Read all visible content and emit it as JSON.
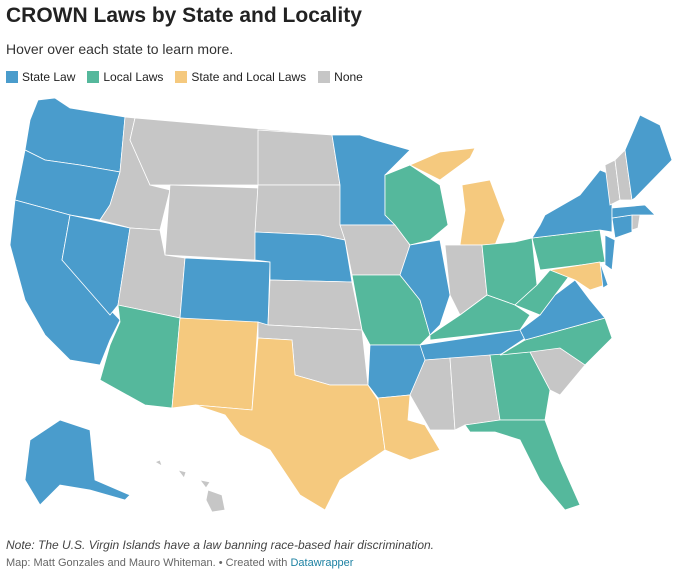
{
  "header": {
    "title": "CROWN Laws by State and Locality",
    "subtitle": "Hover over each state to learn more."
  },
  "legend": [
    {
      "label": "State Law",
      "color": "#4a9ccc"
    },
    {
      "label": "Local Laws",
      "color": "#55b89c"
    },
    {
      "label": "State and Local Laws",
      "color": "#f5c97e"
    },
    {
      "label": "None",
      "color": "#c6c6c6"
    }
  ],
  "states": {
    "WA": 0,
    "OR": 0,
    "CA": 0,
    "NV": 0,
    "ID": 3,
    "MT": 3,
    "WY": 3,
    "UT": 3,
    "CO": 0,
    "AZ": 1,
    "NM": 2,
    "ND": 3,
    "SD": 3,
    "NE": 0,
    "KS": 3,
    "OK": 3,
    "TX": 2,
    "MN": 0,
    "IA": 3,
    "MO": 1,
    "AR": 0,
    "LA": 2,
    "WI": 1,
    "IL": 0,
    "MI": 2,
    "MIU": 2,
    "IN": 3,
    "OH": 1,
    "KY": 1,
    "TN": 0,
    "MS": 3,
    "AL": 3,
    "GA": 1,
    "FL": 1,
    "SC": 3,
    "NC": 1,
    "VA": 0,
    "WV": 1,
    "PA": 1,
    "NY": 0,
    "MD": 2,
    "DE": 0,
    "NJ": 0,
    "CT": 0,
    "RI": 3,
    "MA": 0,
    "VT": 3,
    "NH": 3,
    "ME": 0,
    "AK": 0,
    "HI": 3
  },
  "footer": {
    "note": "Note: The U.S. Virgin Islands have a law banning race-based hair discrimination.",
    "credit": "Map: Matt Gonzales and Mauro Whiteman. • Created with ",
    "credit_link": "Datawrapper"
  }
}
